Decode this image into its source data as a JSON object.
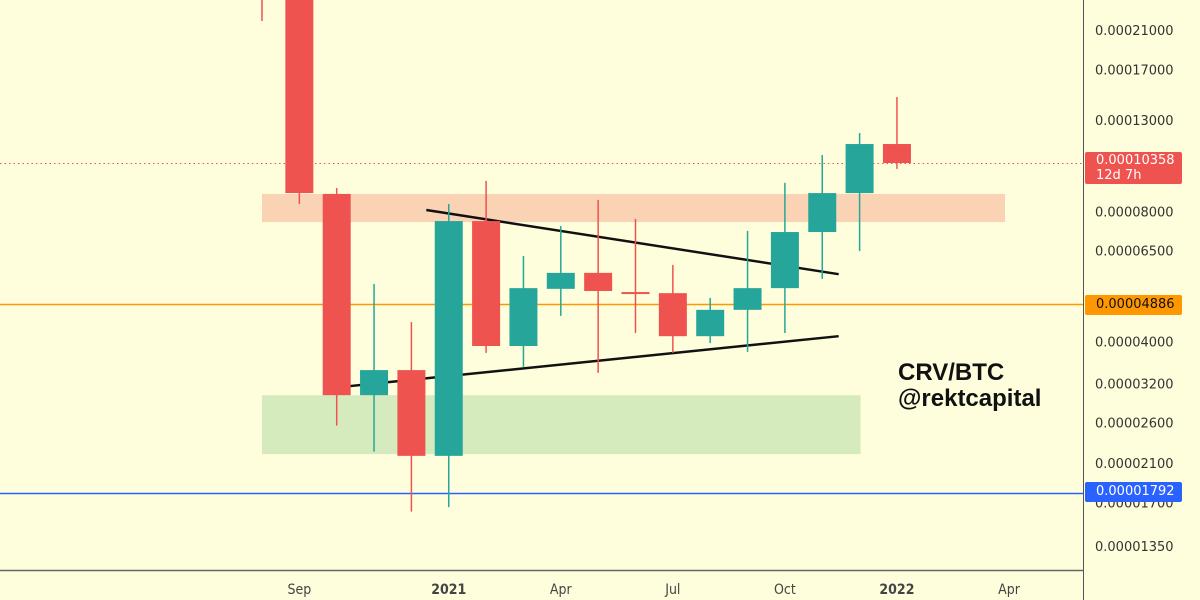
{
  "chart_data": {
    "type": "candlestick",
    "title": "",
    "symbol_annotation": [
      "CRV/BTC",
      "@rektcapital"
    ],
    "y_scale": "log",
    "ylim": [
      1.18e-05,
      0.00025
    ],
    "y_ticks": [
      "0.00021000",
      "0.00017000",
      "0.00013000",
      "0.00008000",
      "0.00006500",
      "0.00004000",
      "0.00003200",
      "0.00002600",
      "0.00002100",
      "0.00001700",
      "0.00001350"
    ],
    "x_ticks": [
      {
        "label": "Sep",
        "month": "2020-09",
        "bold": false
      },
      {
        "label": "2021",
        "month": "2021-01",
        "bold": true
      },
      {
        "label": "Apr",
        "month": "2021-04",
        "bold": false
      },
      {
        "label": "Jul",
        "month": "2021-07",
        "bold": false
      },
      {
        "label": "Oct",
        "month": "2021-10",
        "bold": false
      },
      {
        "label": "2022",
        "month": "2022-01",
        "bold": true
      },
      {
        "label": "Apr",
        "month": "2022-04",
        "bold": false
      }
    ],
    "interval": "1M",
    "candles": [
      {
        "month": "2020-08",
        "open": null,
        "high": null,
        "low": 0.0002203,
        "close": null
      },
      {
        "month": "2020-09",
        "open": 0.0003,
        "high": 0.00032,
        "low": 8.32e-05,
        "close": 8.82e-05
      },
      {
        "month": "2020-10",
        "open": 8.78e-05,
        "high": 9.06e-05,
        "low": 2.56e-05,
        "close": 3.01e-05
      },
      {
        "month": "2020-11",
        "open": 3.01e-05,
        "high": 5.44e-05,
        "low": 2.23e-05,
        "close": 3.44e-05
      },
      {
        "month": "2020-12",
        "open": 3.44e-05,
        "high": 4.44e-05,
        "low": 1.62e-05,
        "close": 2.18e-05
      },
      {
        "month": "2021-01",
        "open": 2.18e-05,
        "high": 8.32e-05,
        "low": 1.66e-05,
        "close": 7.6e-05
      },
      {
        "month": "2021-02",
        "open": 7.6e-05,
        "high": 9.41e-05,
        "low": 3.77e-05,
        "close": 3.91e-05
      },
      {
        "month": "2021-03",
        "open": 3.91e-05,
        "high": 6.31e-05,
        "low": 3.5e-05,
        "close": 5.32e-05
      },
      {
        "month": "2021-04",
        "open": 5.3e-05,
        "high": 7.4e-05,
        "low": 4.59e-05,
        "close": 5.77e-05
      },
      {
        "month": "2021-05",
        "open": 5.77e-05,
        "high": 8.5e-05,
        "low": 3.39e-05,
        "close": 5.24e-05
      },
      {
        "month": "2021-06",
        "open": 5.21e-05,
        "high": 7.69e-05,
        "low": 4.19e-05,
        "close": 5.18e-05
      },
      {
        "month": "2021-07",
        "open": 5.18e-05,
        "high": 6.02e-05,
        "low": 3.77e-05,
        "close": 4.12e-05
      },
      {
        "month": "2021-08",
        "open": 4.12e-05,
        "high": 5.05e-05,
        "low": 3.97e-05,
        "close": 4.74e-05
      },
      {
        "month": "2021-09",
        "open": 4.74e-05,
        "high": 7.21e-05,
        "low": 3.79e-05,
        "close": 5.32e-05
      },
      {
        "month": "2021-10",
        "open": 5.32e-05,
        "high": 9.31e-05,
        "low": 4.19e-05,
        "close": 7.17e-05
      },
      {
        "month": "2021-11",
        "open": 7.17e-05,
        "high": 0.000108,
        "low": 5.59e-05,
        "close": 8.82e-05
      },
      {
        "month": "2021-12",
        "open": 8.82e-05,
        "high": 0.0001214,
        "low": 6.48e-05,
        "close": 0.0001145
      },
      {
        "month": "2022-01",
        "open": 0.0001145,
        "high": 0.000147,
        "low": 0.0001003,
        "close": 0.0001035
      }
    ],
    "zones": [
      {
        "name": "resistance-zone",
        "from": "2020-08",
        "to": "2022-04",
        "top": 8.78e-05,
        "bottom": 7.56e-05,
        "color": "#f9d3b4"
      },
      {
        "name": "support-zone",
        "from": "2020-08",
        "to": "2021-12",
        "top": 3.01e-05,
        "bottom": 2.2e-05,
        "color": "#d6ebbd"
      }
    ],
    "trendlines": [
      {
        "name": "upper-trendline",
        "start": {
          "month": 2020.95,
          "price": 8.06e-05
        },
        "end": {
          "month": 2021.87,
          "price": 5.73e-05
        }
      },
      {
        "name": "lower-trendline",
        "start": {
          "month": 2020.78,
          "price": 3.16e-05
        },
        "end": {
          "month": 2021.87,
          "price": 4.12e-05
        }
      }
    ],
    "horizontal_lines": [
      {
        "name": "orange-level",
        "price": 4.886e-05,
        "label": "0.00004886",
        "color": "#ff9800"
      },
      {
        "name": "blue-level",
        "price": 1.792e-05,
        "label": "0.00001792",
        "color": "#2962ff"
      }
    ],
    "last_price": {
      "price": 0.00010358,
      "label": "0.00010358",
      "countdown": "12d 7h",
      "color": "#ef5350"
    },
    "colors": {
      "up": "#26a69a",
      "down": "#ef5350",
      "background": "#fefedc"
    },
    "grid": false
  }
}
